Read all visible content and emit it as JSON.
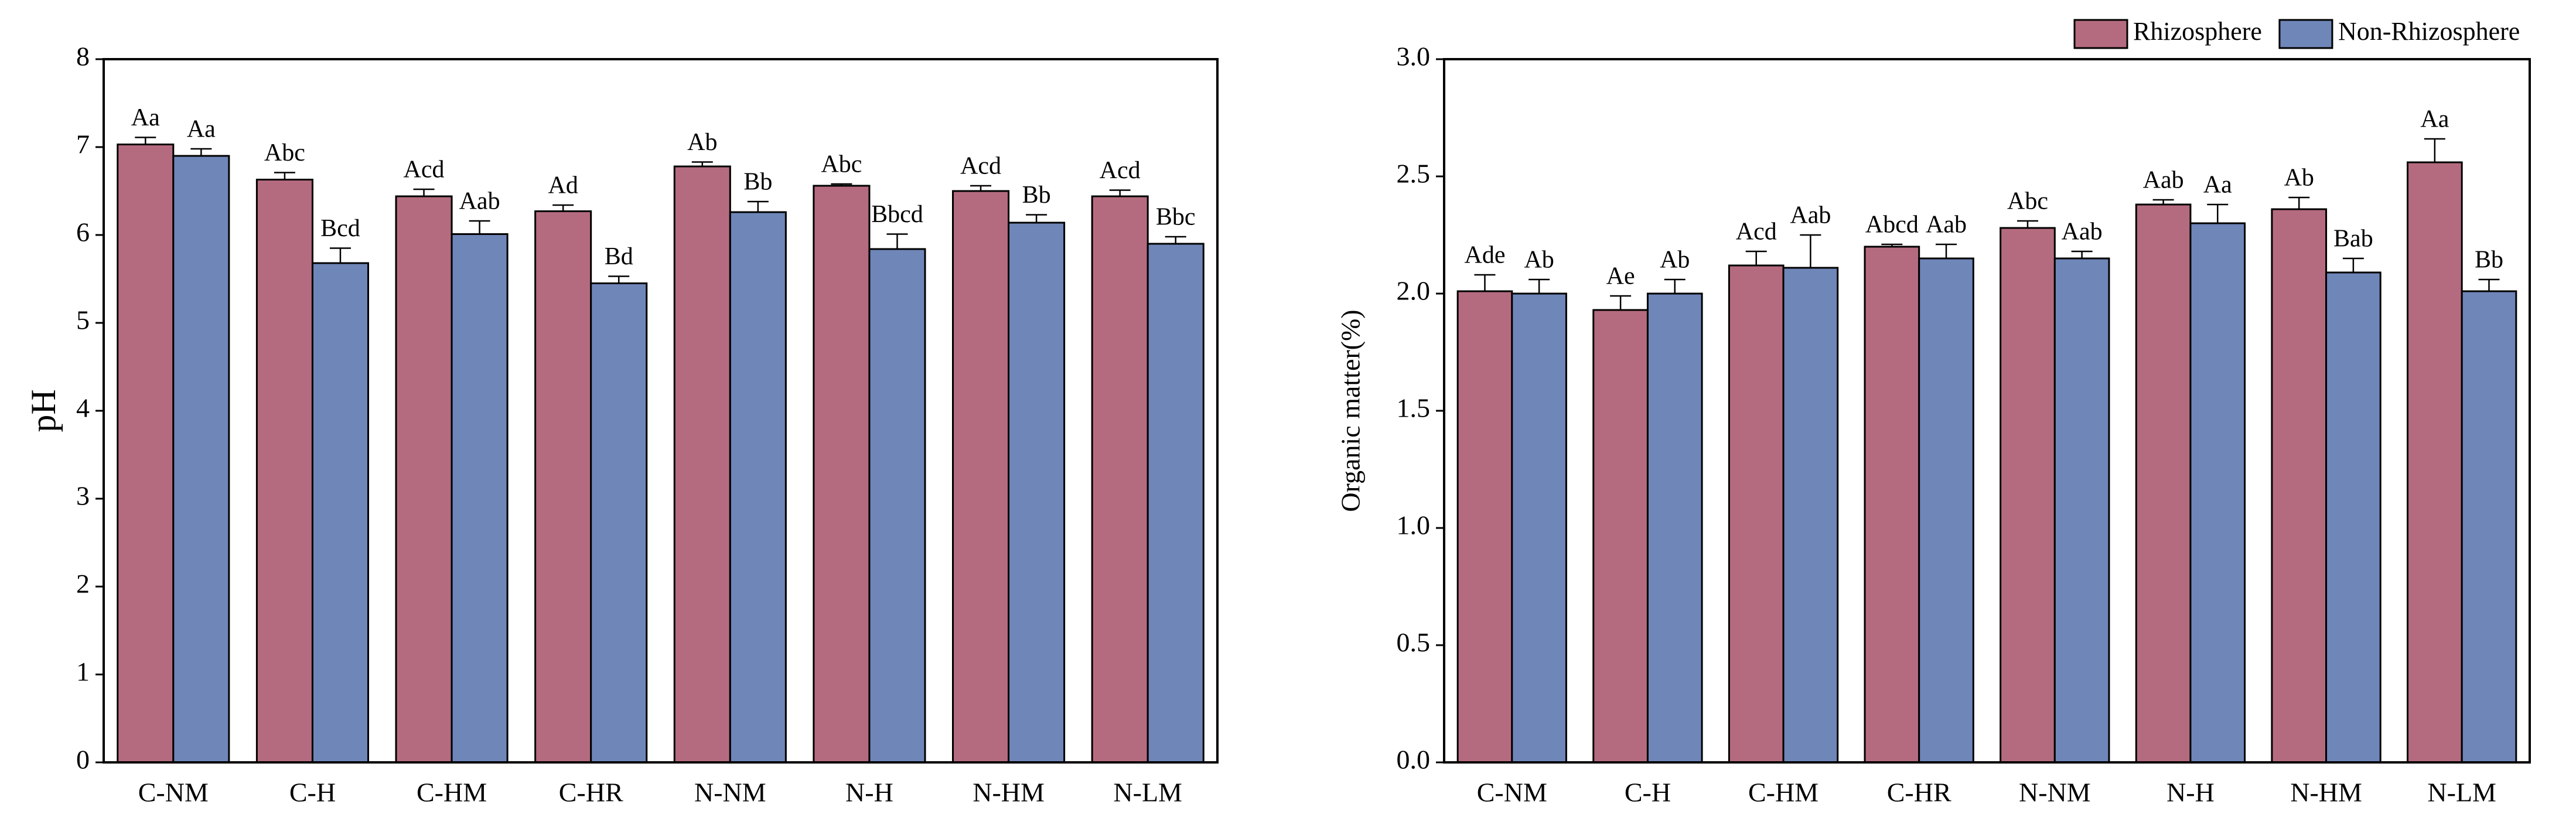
{
  "chart_data": [
    {
      "type": "bar",
      "ylabel": "pH",
      "categories": [
        "C-NM",
        "C-H",
        "C-HM",
        "C-HR",
        "N-NM",
        "N-H",
        "N-HM",
        "N-LM"
      ],
      "ylim": [
        0,
        8
      ],
      "yticks": [
        0,
        1,
        2,
        3,
        4,
        5,
        6,
        7,
        8
      ],
      "series": [
        {
          "color": "#b56b7f",
          "values": [
            7.03,
            6.63,
            6.44,
            6.27,
            6.78,
            6.56,
            6.5,
            6.44
          ],
          "errors": [
            0.08,
            0.08,
            0.08,
            0.07,
            0.05,
            0.02,
            0.06,
            0.07
          ],
          "letters": [
            "Aa",
            "Abc",
            "Acd",
            "Ad",
            "Ab",
            "Abc",
            "Acd",
            "Acd"
          ]
        },
        {
          "color": "#6f86b8",
          "values": [
            6.9,
            5.68,
            6.01,
            5.45,
            6.26,
            5.84,
            6.14,
            5.9
          ],
          "errors": [
            0.08,
            0.17,
            0.15,
            0.08,
            0.12,
            0.17,
            0.09,
            0.08
          ],
          "letters": [
            "Aa",
            "Bcd",
            "Aab",
            "Bd",
            "Bb",
            "Bbcd",
            "Bb",
            "Bbc"
          ]
        }
      ]
    },
    {
      "type": "bar",
      "ylabel": "Organic matter(%)",
      "categories": [
        "C-NM",
        "C-H",
        "C-HM",
        "C-HR",
        "N-NM",
        "N-H",
        "N-HM",
        "N-LM"
      ],
      "ylim": [
        0,
        3
      ],
      "yticks": [
        {
          "value": 0,
          "label": "0.0"
        },
        0.5,
        {
          "value": 1,
          "label": "1.0"
        },
        1.5,
        {
          "value": 2,
          "label": "2.0"
        },
        2.5,
        {
          "value": 3,
          "label": "3.0"
        }
      ],
      "legend": "top-right",
      "series": [
        {
          "name": "Rhizosphere",
          "color": "#b56b7f",
          "values": [
            2.01,
            1.93,
            2.12,
            2.2,
            2.28,
            2.38,
            2.36,
            2.56
          ],
          "errors": [
            0.07,
            0.06,
            0.06,
            0.01,
            0.03,
            0.02,
            0.05,
            0.1
          ],
          "letters": [
            "Ade",
            "Ae",
            "Acd",
            "Abcd",
            "Abc",
            "Aab",
            "Ab",
            "Aa"
          ]
        },
        {
          "name": "Non-Rhizosphere",
          "color": "#6f86b8",
          "values": [
            2.0,
            2.0,
            2.11,
            2.15,
            2.15,
            2.3,
            2.09,
            2.01
          ],
          "errors": [
            0.06,
            0.06,
            0.14,
            0.06,
            0.03,
            0.08,
            0.06,
            0.05
          ],
          "letters": [
            "Ab",
            "Ab",
            "Aab",
            "Aab",
            "Aab",
            "Aa",
            "Bab",
            "Bb"
          ]
        }
      ]
    }
  ]
}
